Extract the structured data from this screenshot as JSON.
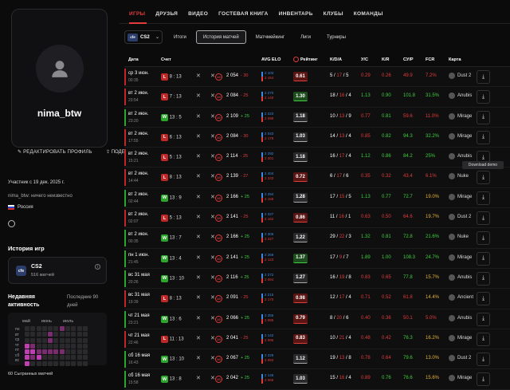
{
  "profile": {
    "username": "nima_btw",
    "edit_label": "РЕДАКТИРОВАТЬ ПРОФИЛЬ",
    "share_label": "ПОДЕЛИТЬСЯ",
    "member_since": "Участник с 19 дек. 2025 г.",
    "status": "nima_btw: ничего неизвестно",
    "country": "Россия"
  },
  "history": {
    "title": "История игр",
    "game": "CS2",
    "matches": "516 матчей"
  },
  "activity": {
    "title": "Недавняя активность",
    "period": "Последние 90 дней",
    "months": [
      "май",
      "июнь",
      "июль"
    ],
    "days": [
      "пн",
      "вт",
      "ср",
      "чт",
      "пт",
      "сб",
      "вс"
    ],
    "played": "60 Сыгранных матчей"
  },
  "nav": {
    "tabs": [
      "ИГРЫ",
      "ДРУЗЬЯ",
      "ВИДЕО",
      "ГОСТЕВАЯ КНИГА",
      "ИНВЕНТАРЬ",
      "КЛУБЫ",
      "КОМАНДЫ"
    ]
  },
  "game_select": "CS2",
  "subtabs": [
    "Итоги",
    "История матчей",
    "Матчмейкинг",
    "Лиги",
    "Турниры"
  ],
  "table": {
    "headers": [
      "Дата",
      "Счет",
      "AVG ELO",
      "Рейтинг",
      "K/D/A",
      "У/С",
      "K/R",
      "СУ/Р",
      "FCR",
      "Карта"
    ],
    "tooltip": "Download demo",
    "rows": [
      {
        "d1": "ср 3 июн.",
        "d2": "00:35",
        "res": "L",
        "score": "8 : 13",
        "elo": "2 054",
        "delta": "- 30",
        "a1": "2 103",
        "a2": "2 164",
        "rating": "0.61",
        "k": "5",
        "dd": "17",
        "a": "5",
        "hs": "0.29",
        "kr": "0.26",
        "adr": "49.9",
        "fcr": "7.2%",
        "map": "Dust 2"
      },
      {
        "d1": "вт 2 июн.",
        "d2": "23:54",
        "res": "L",
        "score": "7 : 13",
        "elo": "2 084",
        "delta": "- 25",
        "a1": "2 270",
        "a2": "2 140",
        "rating": "1.30",
        "k": "18",
        "dd": "16",
        "a": "4",
        "hs": "1.13",
        "kr": "0.90",
        "adr": "101.8",
        "fcr": "31.5%",
        "map": "Anubis"
      },
      {
        "d1": "вт 2 июн.",
        "d2": "23:20",
        "res": "W",
        "score": "13 : 5",
        "elo": "2 109",
        "delta": "+ 25",
        "a1": "2 223",
        "a2": "2 099",
        "rating": "1.18",
        "k": "10",
        "dd": "13",
        "a": "9",
        "hs": "0.77",
        "kr": "0.81",
        "adr": "59.6",
        "fcr": "11.0%",
        "map": "Mirage"
      },
      {
        "d1": "вт 2 июн.",
        "d2": "17:55",
        "res": "L",
        "score": "6 : 13",
        "elo": "2 084",
        "delta": "- 30",
        "a1": "2 043",
        "a2": "2 178",
        "rating": "1.03",
        "k": "14",
        "dd": "13",
        "a": "4",
        "hs": "0.85",
        "kr": "0.82",
        "adr": "94.3",
        "fcr": "32.2%",
        "map": "Mirage"
      },
      {
        "d1": "вт 2 июн.",
        "d2": "15:21",
        "res": "L",
        "score": "5 : 13",
        "elo": "2 114",
        "delta": "- 25",
        "a1": "2 292",
        "a2": "2 301",
        "rating": "1.18",
        "k": "16",
        "dd": "17",
        "a": "4",
        "hs": "1.12",
        "kr": "0.86",
        "adr": "84.2",
        "fcr": "25%",
        "map": "Anubis"
      },
      {
        "d1": "вт 2 июн.",
        "d2": "14:44",
        "res": "L",
        "score": "8 : 13",
        "elo": "2 139",
        "delta": "- 27",
        "a1": "2 404",
        "a2": "2 333",
        "rating": "0.72",
        "k": "6",
        "dd": "17",
        "a": "6",
        "hs": "0.35",
        "kr": "0.32",
        "adr": "43.4",
        "fcr": "6.1%",
        "map": "Nuke"
      },
      {
        "d1": "вт 2 июн.",
        "d2": "02:44",
        "res": "W",
        "score": "13 : 9",
        "elo": "2 166",
        "delta": "+ 25",
        "a1": "2 294",
        "a2": "2 156",
        "rating": "1.28",
        "k": "17",
        "dd": "15",
        "a": "5",
        "hs": "1.13",
        "kr": "0.77",
        "adr": "72.7",
        "fcr": "19.0%",
        "map": "Mirage"
      },
      {
        "d1": "вт 2 июн.",
        "d2": "02:07",
        "res": "L",
        "score": "5 : 13",
        "elo": "2 141",
        "delta": "- 25",
        "a1": "2 327",
        "a2": "2 162",
        "rating": "0.86",
        "k": "11",
        "dd": "16",
        "a": "1",
        "hs": "0.63",
        "kr": "0.50",
        "adr": "64.6",
        "fcr": "19.7%",
        "map": "Dust 2"
      },
      {
        "d1": "вт 2 июн.",
        "d2": "00:35",
        "res": "W",
        "score": "13 : 7",
        "elo": "2 166",
        "delta": "+ 25",
        "a1": "2 306",
        "a2": "2 227",
        "rating": "1.22",
        "k": "29",
        "dd": "22",
        "a": "3",
        "hs": "1.32",
        "kr": "0.81",
        "adr": "72.8",
        "fcr": "21.6%",
        "map": "Nuke"
      },
      {
        "d1": "пн 1 июн.",
        "d2": "21:45",
        "res": "W",
        "score": "13 : 4",
        "elo": "2 141",
        "delta": "+ 25",
        "a1": "2 258",
        "a2": "2 123",
        "rating": "1.37",
        "k": "17",
        "dd": "9",
        "a": "7",
        "hs": "1.89",
        "kr": "1.00",
        "adr": "108.3",
        "fcr": "24.7%",
        "map": "Mirage"
      },
      {
        "d1": "вс 31 мая",
        "d2": "20:26",
        "res": "W",
        "score": "13 : 10",
        "elo": "2 116",
        "delta": "+ 25",
        "a1": "2 272",
        "a2": "2 064",
        "rating": "1.27",
        "k": "16",
        "dd": "19",
        "a": "8",
        "hs": "0.83",
        "kr": "0.65",
        "adr": "77.8",
        "fcr": "15.7%",
        "map": "Anubis"
      },
      {
        "d1": "вс 31 мая",
        "d2": "19:39",
        "res": "L",
        "score": "8 : 13",
        "elo": "2 091",
        "delta": "- 25",
        "a1": "2 215",
        "a2": "2 170",
        "rating": "0.98",
        "k": "12",
        "dd": "17",
        "a": "4",
        "hs": "0.71",
        "kr": "0.52",
        "adr": "61.8",
        "fcr": "14.4%",
        "map": "Ancient"
      },
      {
        "d1": "чт 21 мая",
        "d2": "23:21",
        "res": "W",
        "score": "13 : 6",
        "elo": "2 066",
        "delta": "+ 25",
        "a1": "2 255",
        "a2": "2 086",
        "rating": "0.79",
        "k": "8",
        "dd": "20",
        "a": "6",
        "hs": "0.40",
        "kr": "0.36",
        "adr": "50.1",
        "fcr": "5.0%",
        "map": "Anubis"
      },
      {
        "d1": "чт 21 мая",
        "d2": "22:46",
        "res": "L",
        "score": "11 : 13",
        "elo": "2 041",
        "delta": "- 25",
        "a1": "2 142",
        "a2": "2 096",
        "rating": "0.83",
        "k": "10",
        "dd": "21",
        "a": "4",
        "hs": "0.48",
        "kr": "0.42",
        "adr": "76.3",
        "fcr": "16.2%",
        "map": "Mirage"
      },
      {
        "d1": "сб 16 мая",
        "d2": "16:43",
        "res": "W",
        "score": "13 : 10",
        "elo": "2 067",
        "delta": "+ 25",
        "a1": "2 229",
        "a2": "2 063",
        "rating": "1.12",
        "k": "19",
        "dd": "13",
        "a": "8",
        "hs": "0.78",
        "kr": "0.64",
        "adr": "79.6",
        "fcr": "13.0%",
        "map": "Dust 2"
      },
      {
        "d1": "сб 16 мая",
        "d2": "15:58",
        "res": "W",
        "score": "13 : 8",
        "elo": "2 042",
        "delta": "+ 25",
        "a1": "2 148",
        "a2": "2 065",
        "rating": "1.03",
        "k": "15",
        "dd": "16",
        "a": "4",
        "hs": "0.89",
        "kr": "0.76",
        "adr": "76.6",
        "fcr": "15.6%",
        "map": "Mirage"
      }
    ]
  }
}
